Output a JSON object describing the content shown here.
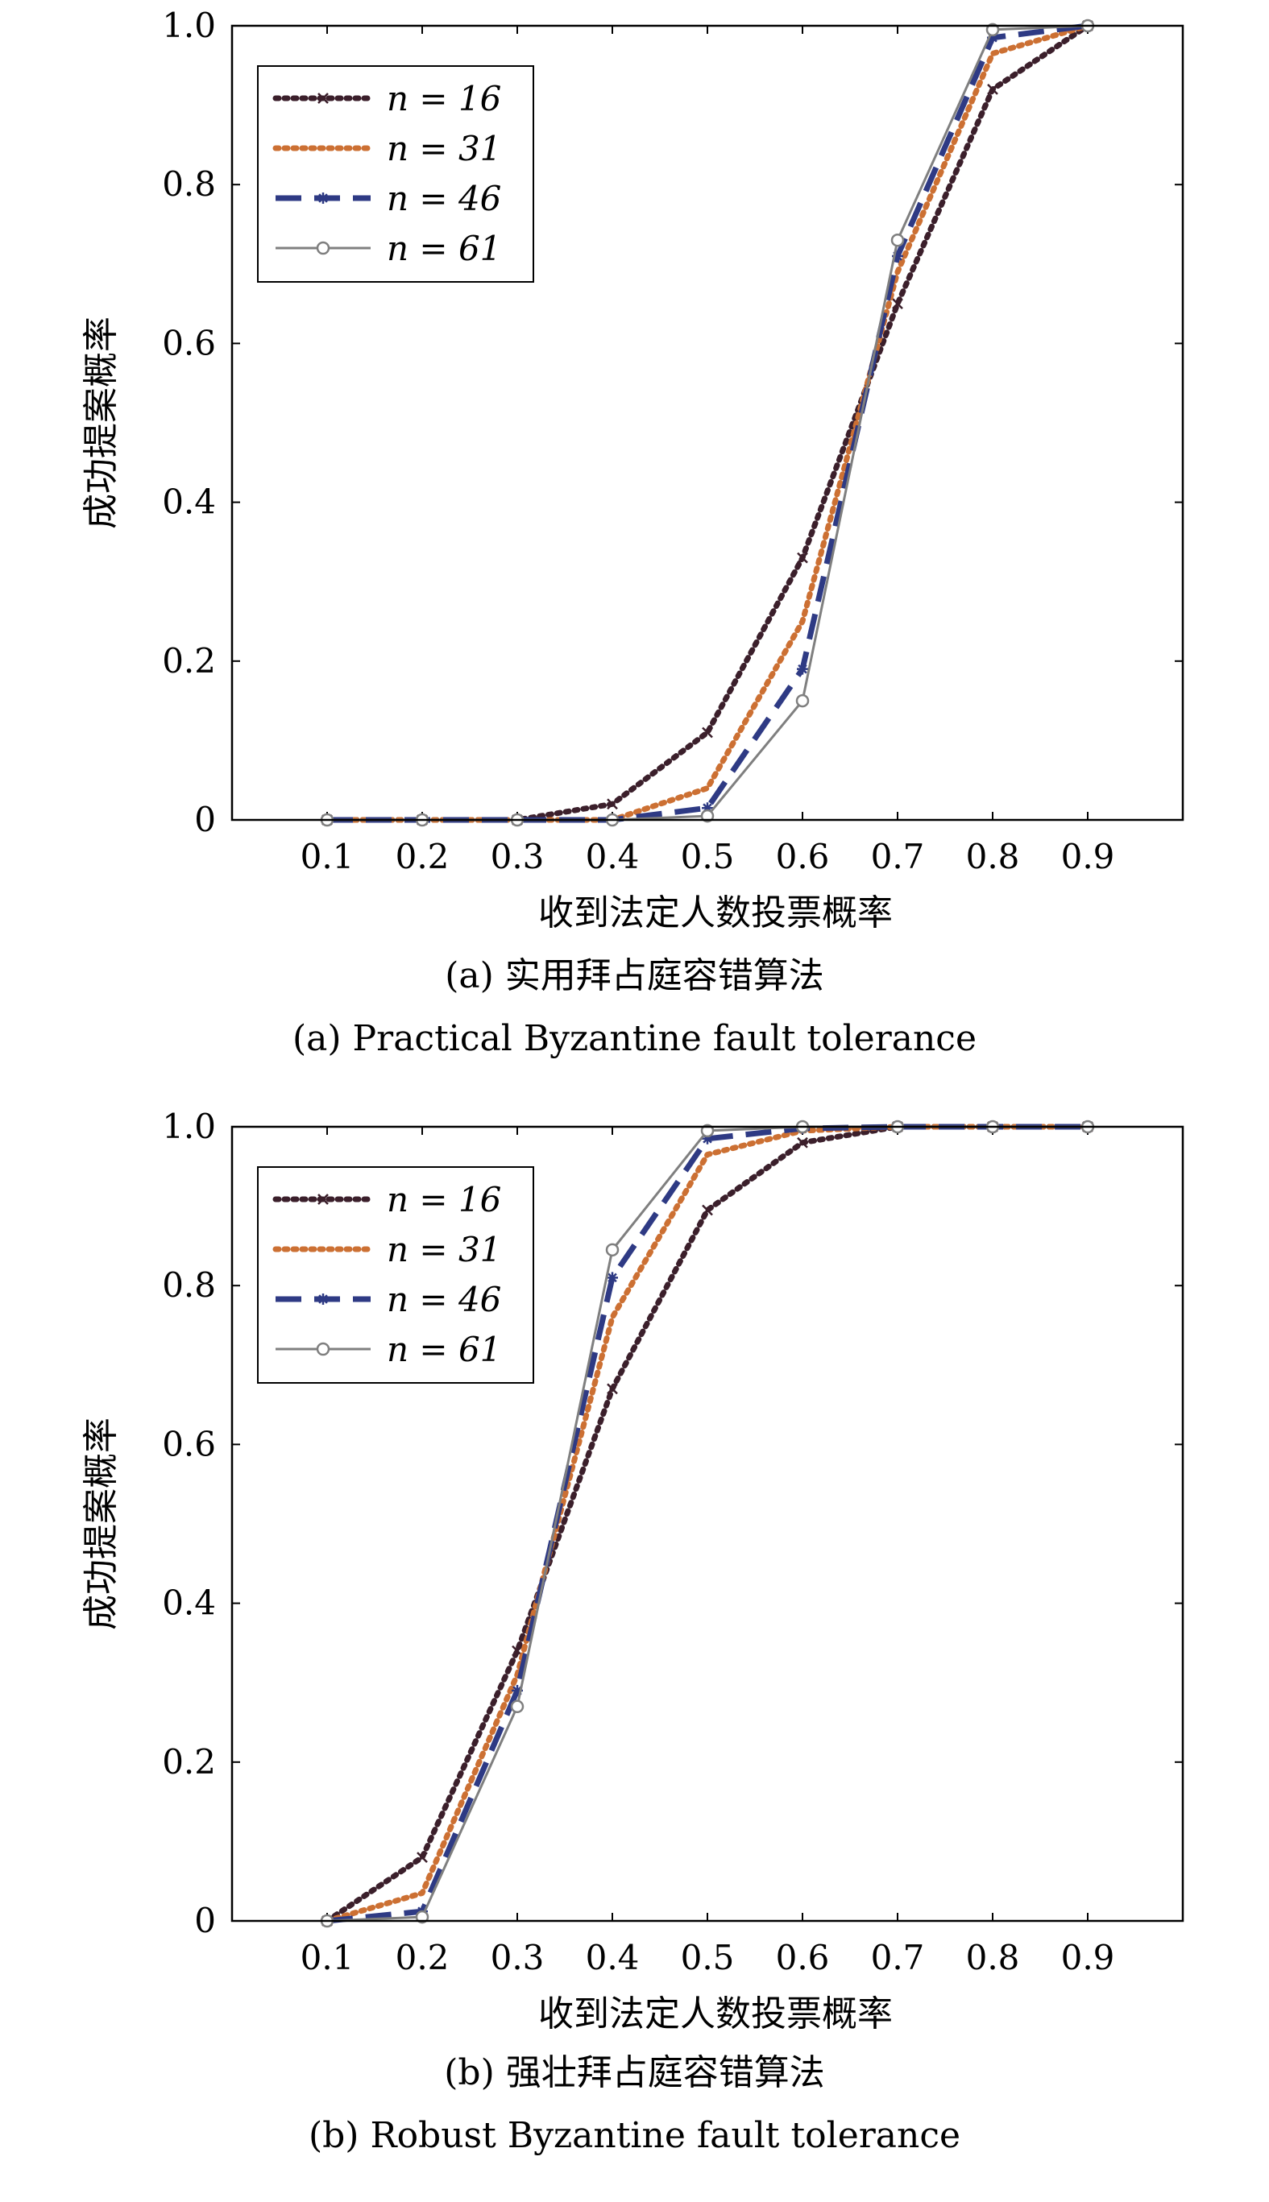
{
  "chart_data": [
    {
      "type": "line",
      "caption_zh": "(a) 实用拜占庭容错算法",
      "caption_en": "(a) Practical Byzantine fault tolerance",
      "xlabel": "收到法定人数投票概率",
      "ylabel": "成功提案概率",
      "x": [
        0.1,
        0.2,
        0.3,
        0.4,
        0.5,
        0.6,
        0.7,
        0.8,
        0.9
      ],
      "x_tick_labels": [
        "0.1",
        "0.2",
        "0.3",
        "0.4",
        "0.5",
        "0.6",
        "0.7",
        "0.8",
        "0.9"
      ],
      "xlim": [
        0,
        1.0
      ],
      "ylim": [
        0,
        1.0
      ],
      "y_ticks": [
        0,
        0.2,
        0.4,
        0.6,
        0.8,
        1.0
      ],
      "y_tick_labels": [
        "0",
        "0.2",
        "0.4",
        "0.6",
        "0.8",
        "1.0"
      ],
      "legend_position": "top-left",
      "series": [
        {
          "name": "n = 16",
          "values": [
            0.0,
            0.0,
            0.0,
            0.02,
            0.11,
            0.33,
            0.65,
            0.92,
            1.0
          ],
          "color": "#3b1f2b",
          "style": "dotted",
          "marker": "x"
        },
        {
          "name": "n = 31",
          "values": [
            0.0,
            0.0,
            0.0,
            0.0,
            0.04,
            0.25,
            0.69,
            0.965,
            1.0
          ],
          "color": "#cc7033",
          "style": "dotted",
          "marker": "none"
        },
        {
          "name": "n = 46",
          "values": [
            0.0,
            0.0,
            0.0,
            0.0,
            0.015,
            0.19,
            0.71,
            0.985,
            1.0
          ],
          "color": "#2e3a84",
          "style": "dashed",
          "marker": "star"
        },
        {
          "name": "n = 61",
          "values": [
            0.0,
            0.0,
            0.0,
            0.0,
            0.005,
            0.15,
            0.73,
            0.995,
            1.0
          ],
          "color": "#7f7f7f",
          "style": "solid",
          "marker": "circle"
        }
      ]
    },
    {
      "type": "line",
      "caption_zh": "(b) 强壮拜占庭容错算法",
      "caption_en": "(b) Robust Byzantine fault tolerance",
      "xlabel": "收到法定人数投票概率",
      "ylabel": "成功提案概率",
      "x": [
        0.1,
        0.2,
        0.3,
        0.4,
        0.5,
        0.6,
        0.7,
        0.8,
        0.9
      ],
      "x_tick_labels": [
        "0.1",
        "0.2",
        "0.3",
        "0.4",
        "0.5",
        "0.6",
        "0.7",
        "0.8",
        "0.9"
      ],
      "xlim": [
        0,
        1.0
      ],
      "ylim": [
        0,
        1.0
      ],
      "y_ticks": [
        0,
        0.2,
        0.4,
        0.6,
        0.8,
        1.0
      ],
      "y_tick_labels": [
        "0",
        "0.2",
        "0.4",
        "0.6",
        "0.8",
        "1.0"
      ],
      "legend_position": "top-left",
      "series": [
        {
          "name": "n = 16",
          "values": [
            0.0,
            0.08,
            0.34,
            0.67,
            0.895,
            0.98,
            1.0,
            1.0,
            1.0
          ],
          "color": "#3b1f2b",
          "style": "dotted",
          "marker": "x"
        },
        {
          "name": "n = 31",
          "values": [
            0.0,
            0.035,
            0.31,
            0.76,
            0.965,
            0.995,
            1.0,
            1.0,
            1.0
          ],
          "color": "#cc7033",
          "style": "dotted",
          "marker": "none"
        },
        {
          "name": "n = 46",
          "values": [
            0.0,
            0.012,
            0.29,
            0.81,
            0.985,
            0.998,
            1.0,
            1.0,
            1.0
          ],
          "color": "#2e3a84",
          "style": "dashed",
          "marker": "star"
        },
        {
          "name": "n = 61",
          "values": [
            0.0,
            0.005,
            0.27,
            0.845,
            0.995,
            1.0,
            1.0,
            1.0,
            1.0
          ],
          "color": "#7f7f7f",
          "style": "solid",
          "marker": "circle"
        }
      ]
    }
  ]
}
